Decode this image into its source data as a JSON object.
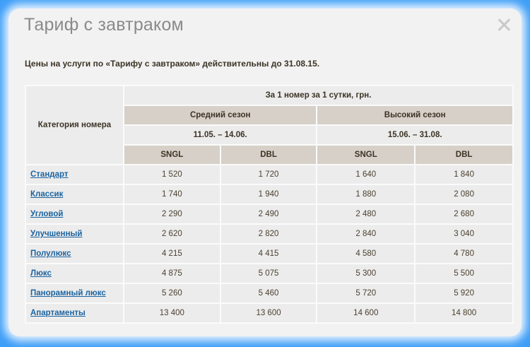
{
  "modal": {
    "title": "Тариф с завтраком",
    "close_icon": "close-x-icon",
    "note": "Цены на услуги по «Тарифу с завтраком» действительны до 31.08.15."
  },
  "table": {
    "category_header": "Категория номера",
    "price_header": "За 1 номер за 1 сутки, грн.",
    "seasons": [
      {
        "name": "Средний сезон",
        "dates": "11.05. – 14.06."
      },
      {
        "name": "Высокий сезон",
        "dates": "15.06. – 31.08."
      }
    ],
    "room_types": [
      "SNGL",
      "DBL",
      "SNGL",
      "DBL"
    ],
    "rows": [
      {
        "category": "Стандарт",
        "values": [
          "1 520",
          "1 720",
          "1 640",
          "1 840"
        ]
      },
      {
        "category": "Классик",
        "values": [
          "1 740",
          "1 940",
          "1 880",
          "2 080"
        ]
      },
      {
        "category": "Угловой",
        "values": [
          "2 290",
          "2 490",
          "2 480",
          "2 680"
        ]
      },
      {
        "category": "Улучшенный",
        "values": [
          "2 620",
          "2 820",
          "2 840",
          "3 040"
        ]
      },
      {
        "category": "Полулюкс",
        "values": [
          "4 215",
          "4 415",
          "4 580",
          "4 780"
        ]
      },
      {
        "category": "Люкс",
        "values": [
          "4 875",
          "5 075",
          "5 300",
          "5 500"
        ]
      },
      {
        "category": "Панорамный люкс",
        "values": [
          "5 260",
          "5 460",
          "5 720",
          "5 920"
        ]
      },
      {
        "category": "Апартаменты",
        "values": [
          "13 400",
          "13 600",
          "14 600",
          "14 800"
        ]
      }
    ]
  },
  "colors": {
    "background": "#3f9ef7",
    "header_dark": "#d6d0c8",
    "link": "#1b63a0"
  }
}
